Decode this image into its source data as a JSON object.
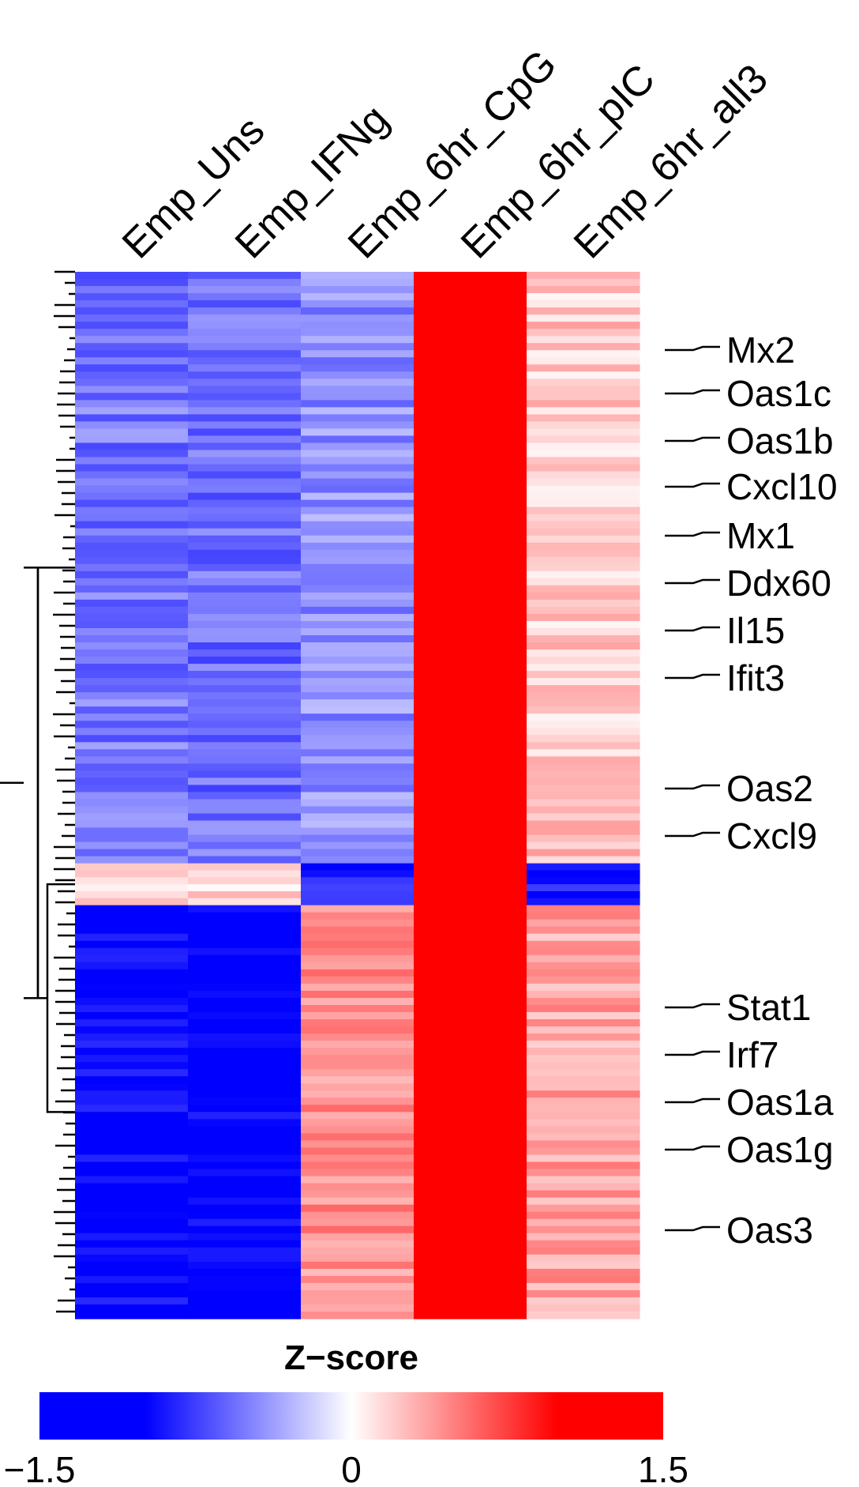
{
  "chart_data": {
    "type": "heatmap",
    "title": "",
    "columns": [
      "Emp_Uns",
      "Emp_IFNg",
      "Emp_6hr_CpG",
      "Emp_6hr_pIC",
      "Emp_6hr_all3"
    ],
    "row_labels": [
      "Mx2",
      "Oas1c",
      "Oas1b",
      "Cxcl10",
      "Mx1",
      "Ddx60",
      "Il15",
      "Ifit3",
      "Oas2",
      "Cxcl9",
      "Stat1",
      "Irf7",
      "Oas1a",
      "Oas1g",
      "Oas3"
    ],
    "row_clusters": [
      {
        "name": "",
        "fraction": 0.565,
        "values": [
          -0.75,
          -0.8,
          -0.6,
          1.5,
          0.3
        ]
      },
      {
        "name": "",
        "fraction": 0.04,
        "values": [
          0.2,
          0.25,
          -1.2,
          1.5,
          -1.3
        ]
      },
      {
        "name": "",
        "fraction": 0.395,
        "values": [
          -1.4,
          -1.45,
          0.6,
          1.5,
          0.5
        ]
      }
    ],
    "legend": {
      "title": "Z−score",
      "min": -1.5,
      "max": 1.5,
      "tick_labels": [
        "−1.5",
        "0",
        "1.5"
      ],
      "colors": {
        "low": "#0000ff",
        "mid": "#ffffff",
        "high": "#ff0000"
      }
    }
  }
}
